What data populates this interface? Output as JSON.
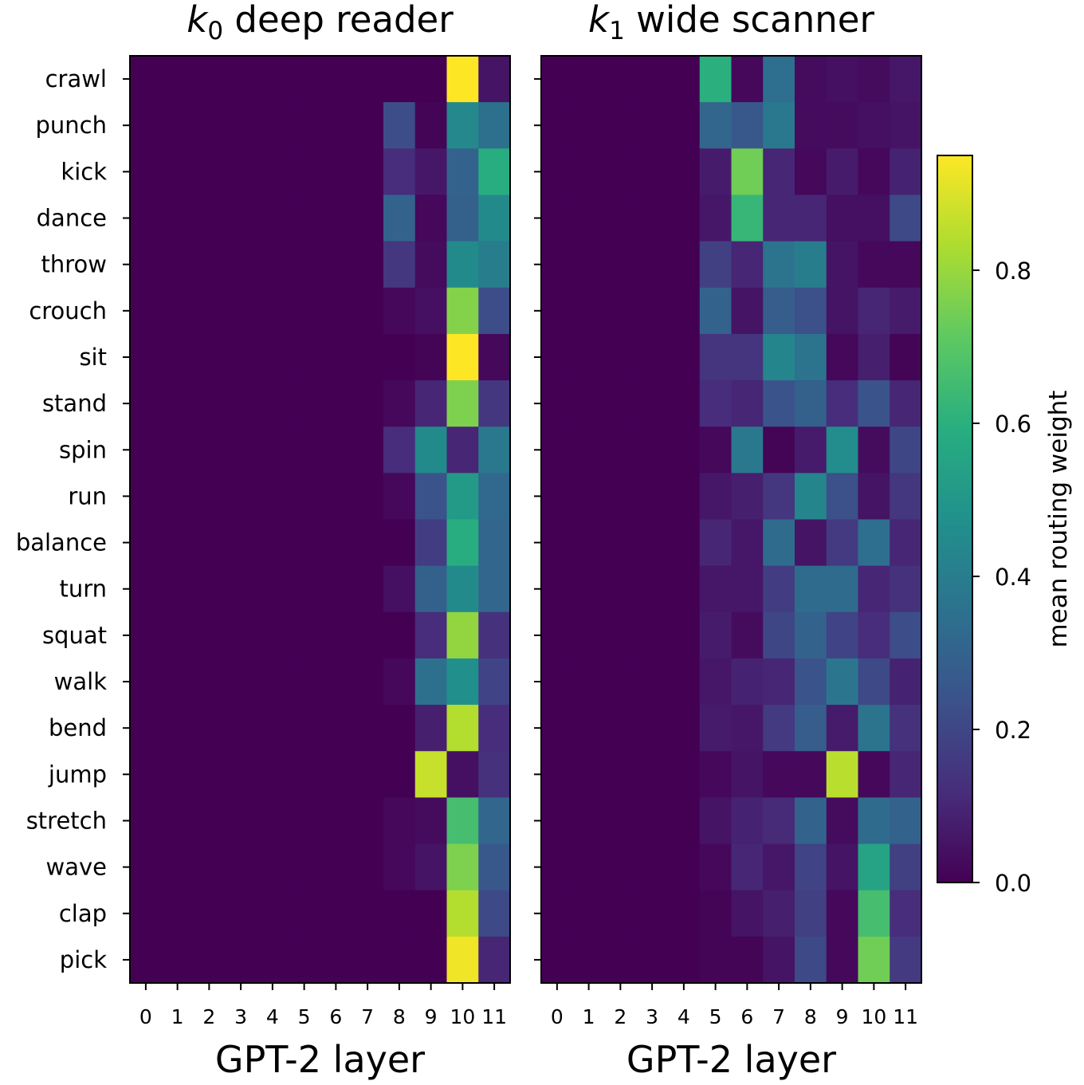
{
  "chart_data": [
    {
      "type": "heatmap",
      "title_prefix": "k",
      "title_subscript": "0",
      "title_rest": " deep reader",
      "xlabel": "GPT-2 layer",
      "x": [
        "0",
        "1",
        "2",
        "3",
        "4",
        "5",
        "6",
        "7",
        "8",
        "9",
        "10",
        "11"
      ],
      "y": [
        "crawl",
        "punch",
        "kick",
        "dance",
        "throw",
        "crouch",
        "sit",
        "stand",
        "spin",
        "run",
        "balance",
        "turn",
        "squat",
        "walk",
        "bend",
        "jump",
        "stretch",
        "wave",
        "clap",
        "pick"
      ],
      "values": [
        [
          0,
          0,
          0,
          0,
          0,
          0,
          0,
          0,
          0,
          0,
          0.95,
          0.05
        ],
        [
          0,
          0,
          0,
          0,
          0,
          0,
          0,
          0,
          0.22,
          0.01,
          0.44,
          0.35
        ],
        [
          0,
          0,
          0,
          0,
          0,
          0,
          0,
          0,
          0.12,
          0.06,
          0.3,
          0.59
        ],
        [
          0,
          0,
          0,
          0,
          0,
          0,
          0,
          0,
          0.3,
          0.02,
          0.29,
          0.45
        ],
        [
          0,
          0,
          0,
          0,
          0,
          0,
          0,
          0,
          0.15,
          0.03,
          0.45,
          0.4
        ],
        [
          0,
          0,
          0,
          0,
          0,
          0,
          0,
          0,
          0.02,
          0.04,
          0.77,
          0.22
        ],
        [
          0,
          0,
          0,
          0,
          0,
          0,
          0,
          0,
          0,
          0.01,
          0.95,
          0.02
        ],
        [
          0,
          0,
          0,
          0,
          0,
          0,
          0,
          0,
          0.02,
          0.1,
          0.76,
          0.15
        ],
        [
          0,
          0,
          0,
          0,
          0,
          0,
          0,
          0,
          0.12,
          0.45,
          0.1,
          0.38
        ],
        [
          0,
          0,
          0,
          0,
          0,
          0,
          0,
          0,
          0.02,
          0.24,
          0.51,
          0.32
        ],
        [
          0,
          0,
          0,
          0,
          0,
          0,
          0,
          0,
          0,
          0.17,
          0.59,
          0.31
        ],
        [
          0,
          0,
          0,
          0,
          0,
          0,
          0,
          0,
          0.04,
          0.29,
          0.45,
          0.31
        ],
        [
          0,
          0,
          0,
          0,
          0,
          0,
          0,
          0,
          0,
          0.12,
          0.79,
          0.13
        ],
        [
          0,
          0,
          0,
          0,
          0,
          0,
          0,
          0,
          0.02,
          0.35,
          0.47,
          0.19
        ],
        [
          0,
          0,
          0,
          0,
          0,
          0,
          0,
          0,
          0,
          0.08,
          0.84,
          0.12
        ],
        [
          0,
          0,
          0,
          0,
          0,
          0,
          0,
          0,
          0,
          0.87,
          0.04,
          0.13
        ],
        [
          0,
          0,
          0,
          0,
          0,
          0,
          0,
          0,
          0.02,
          0.03,
          0.66,
          0.31
        ],
        [
          0,
          0,
          0,
          0,
          0,
          0,
          0,
          0,
          0.02,
          0.05,
          0.76,
          0.26
        ],
        [
          0,
          0,
          0,
          0,
          0,
          0,
          0,
          0,
          0,
          0,
          0.84,
          0.21
        ],
        [
          0,
          0,
          0,
          0,
          0,
          0,
          0,
          0,
          0,
          0,
          0.93,
          0.1
        ]
      ]
    },
    {
      "type": "heatmap",
      "title_prefix": "k",
      "title_subscript": "1",
      "title_rest": " wide scanner",
      "xlabel": "GPT-2 layer",
      "x": [
        "0",
        "1",
        "2",
        "3",
        "4",
        "5",
        "6",
        "7",
        "8",
        "9",
        "10",
        "11"
      ],
      "y": [
        "crawl",
        "punch",
        "kick",
        "dance",
        "throw",
        "crouch",
        "sit",
        "stand",
        "spin",
        "run",
        "balance",
        "turn",
        "squat",
        "walk",
        "bend",
        "jump",
        "stretch",
        "wave",
        "clap",
        "pick"
      ],
      "values": [
        [
          0,
          0,
          0,
          0,
          0,
          0.6,
          0.02,
          0.34,
          0.03,
          0.04,
          0.03,
          0.06
        ],
        [
          0,
          0,
          0,
          0,
          0,
          0.31,
          0.26,
          0.38,
          0.03,
          0.03,
          0.04,
          0.05
        ],
        [
          0,
          0,
          0,
          0,
          0,
          0.07,
          0.74,
          0.1,
          0.02,
          0.07,
          0.02,
          0.09
        ],
        [
          0,
          0,
          0,
          0,
          0,
          0.06,
          0.63,
          0.1,
          0.1,
          0.04,
          0.04,
          0.21
        ],
        [
          0,
          0,
          0,
          0,
          0,
          0.18,
          0.1,
          0.36,
          0.4,
          0.05,
          0.02,
          0.02
        ],
        [
          0,
          0,
          0,
          0,
          0,
          0.3,
          0.05,
          0.28,
          0.23,
          0.05,
          0.1,
          0.07
        ],
        [
          0,
          0,
          0,
          0,
          0,
          0.14,
          0.14,
          0.43,
          0.36,
          0.02,
          0.08,
          0.01
        ],
        [
          0,
          0,
          0,
          0,
          0,
          0.12,
          0.1,
          0.24,
          0.29,
          0.12,
          0.24,
          0.1
        ],
        [
          0,
          0,
          0,
          0,
          0,
          0.02,
          0.38,
          0.01,
          0.07,
          0.46,
          0.03,
          0.2
        ],
        [
          0,
          0,
          0,
          0,
          0,
          0.06,
          0.08,
          0.15,
          0.43,
          0.23,
          0.05,
          0.15
        ],
        [
          0,
          0,
          0,
          0,
          0,
          0.1,
          0.06,
          0.33,
          0.05,
          0.16,
          0.34,
          0.1
        ],
        [
          0,
          0,
          0,
          0,
          0,
          0.06,
          0.06,
          0.17,
          0.33,
          0.33,
          0.1,
          0.13
        ],
        [
          0,
          0,
          0,
          0,
          0,
          0.07,
          0.03,
          0.2,
          0.3,
          0.19,
          0.12,
          0.22
        ],
        [
          0,
          0,
          0,
          0,
          0,
          0.06,
          0.09,
          0.1,
          0.24,
          0.37,
          0.21,
          0.09
        ],
        [
          0,
          0,
          0,
          0,
          0,
          0.07,
          0.06,
          0.16,
          0.28,
          0.07,
          0.36,
          0.13
        ],
        [
          0,
          0,
          0,
          0,
          0,
          0.02,
          0.05,
          0.02,
          0.02,
          0.85,
          0.02,
          0.1
        ],
        [
          0,
          0,
          0,
          0,
          0,
          0.05,
          0.09,
          0.11,
          0.3,
          0.03,
          0.33,
          0.3
        ],
        [
          0,
          0,
          0,
          0,
          0,
          0.02,
          0.1,
          0.06,
          0.19,
          0.05,
          0.55,
          0.18
        ],
        [
          0,
          0,
          0,
          0,
          0,
          0.01,
          0.05,
          0.08,
          0.18,
          0.02,
          0.66,
          0.12
        ],
        [
          0,
          0,
          0,
          0,
          0,
          0.01,
          0.01,
          0.05,
          0.21,
          0.02,
          0.74,
          0.16
        ]
      ]
    }
  ],
  "colorbar": {
    "label": "mean routing weight",
    "range": [
      0,
      0.95
    ],
    "ticks": [
      "0.0",
      "0.2",
      "0.4",
      "0.6",
      "0.8"
    ],
    "tick_values": [
      0,
      0.2,
      0.4,
      0.6,
      0.8
    ],
    "colormap": "viridis"
  }
}
